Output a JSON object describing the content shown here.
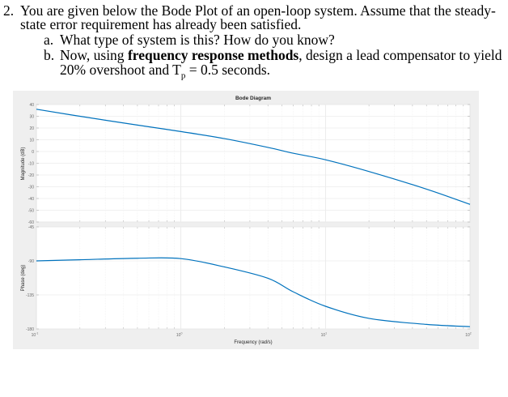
{
  "problem": {
    "number": "2.",
    "intro_line1": "You are given below the Bode Plot of an open-loop system.  Assume that the steady-",
    "intro_line2": "state error requirement has already been satisfied.",
    "part_a_label": "a.",
    "part_a_text": "What type of system is this?  How do you know?",
    "part_b_label": "b.",
    "part_b_pre": "Now, using ",
    "part_b_bold": "frequency response methods",
    "part_b_post": ", design a lead compensator to yield",
    "part_b_line2_pre": "20% overshoot and T",
    "part_b_line2_sub": "p",
    "part_b_line2_post": " = 0.5 seconds."
  },
  "chart_data": {
    "type": "line",
    "title": "Bode Diagram",
    "xlabel": "Frequency  (rad/s)",
    "xscale": "log",
    "xlim": [
      0.1,
      100
    ],
    "xticks": [
      "10^-1",
      "10^0",
      "10^1",
      "10^2"
    ],
    "line_color": "#0072bd",
    "grid": true,
    "subplots": [
      {
        "name": "magnitude",
        "ylabel": "Magnitude (dB)",
        "ylim": [
          -60,
          40
        ],
        "yticks": [
          40,
          30,
          20,
          10,
          0,
          -10,
          -20,
          -30,
          -40,
          -50,
          -60
        ],
        "x": [
          0.1,
          0.2,
          0.5,
          1,
          2,
          4,
          6,
          10,
          20,
          50,
          100
        ],
        "y": [
          36,
          30,
          22.5,
          17,
          11,
          3.5,
          -1.5,
          -7,
          -17,
          -32,
          -45
        ]
      },
      {
        "name": "phase",
        "ylabel": "Phase (deg)",
        "ylim": [
          -180,
          -45
        ],
        "yticks": [
          -45,
          -90,
          -135,
          -180
        ],
        "x": [
          0.1,
          0.2,
          0.5,
          1,
          2,
          4,
          6,
          10,
          20,
          50,
          100
        ],
        "y": [
          -90,
          -88.5,
          -86.5,
          -87,
          -98,
          -113,
          -131,
          -150,
          -166,
          -174,
          -177
        ]
      }
    ]
  }
}
